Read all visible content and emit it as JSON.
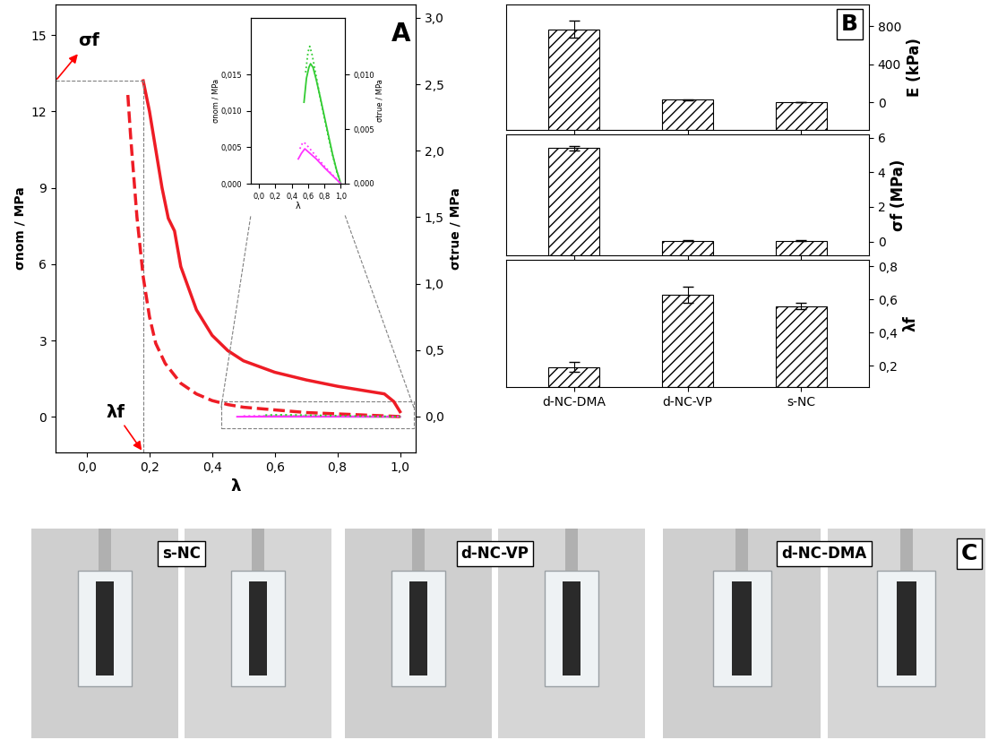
{
  "chart_data": [
    {
      "type": "line",
      "panel_label": "A",
      "x_label": "λ",
      "y_label": "σnom / MPa",
      "y2_label": "σtrue / MPa",
      "xlim": [
        -0.1,
        1.05
      ],
      "xticks": [
        {
          "value": 0.0,
          "label": "0,0"
        },
        {
          "value": 0.2,
          "label": "0,2"
        },
        {
          "value": 0.4,
          "label": "0,4"
        },
        {
          "value": 0.6,
          "label": "0,6"
        },
        {
          "value": 0.8,
          "label": "0,8"
        },
        {
          "value": 1.0,
          "label": "1,0"
        }
      ],
      "ylim": [
        -1.4,
        16.2
      ],
      "yticks": [
        0,
        3,
        6,
        9,
        12,
        15
      ],
      "y2lim": [
        -0.27,
        3.1
      ],
      "y2ticks": [
        {
          "value": 0.0,
          "label": "0,0"
        },
        {
          "value": 0.5,
          "label": "0,5"
        },
        {
          "value": 1.0,
          "label": "1,0"
        },
        {
          "value": 1.5,
          "label": "1,5"
        },
        {
          "value": 2.0,
          "label": "2,0"
        },
        {
          "value": 2.5,
          "label": "2,5"
        },
        {
          "value": 3.0,
          "label": "3,0"
        }
      ],
      "series": [
        {
          "color": "#ee1c25",
          "line_style": "solid",
          "x": [
            1.0,
            0.98,
            0.95,
            0.9,
            0.8,
            0.7,
            0.6,
            0.5,
            0.45,
            0.4,
            0.35,
            0.3,
            0.28,
            0.26,
            0.24,
            0.22,
            0.2,
            0.18
          ],
          "values": [
            0.2,
            0.6,
            0.9,
            1.0,
            1.2,
            1.45,
            1.75,
            2.2,
            2.6,
            3.2,
            4.2,
            5.9,
            7.3,
            7.8,
            9.0,
            10.5,
            12.0,
            13.2
          ]
        },
        {
          "color": "#ee1c25",
          "line_style": "dashed",
          "axis": "y2",
          "x": [
            1.0,
            0.9,
            0.8,
            0.7,
            0.6,
            0.5,
            0.45,
            0.4,
            0.35,
            0.3,
            0.25,
            0.22,
            0.2,
            0.18,
            0.16,
            0.14,
            0.13
          ],
          "values": [
            0.0,
            0.01,
            0.02,
            0.03,
            0.05,
            0.07,
            0.09,
            0.12,
            0.17,
            0.25,
            0.4,
            0.55,
            0.75,
            1.05,
            1.5,
            2.1,
            2.45
          ]
        }
      ],
      "annotations": [
        {
          "text": "σf",
          "y": 13.2
        },
        {
          "text": "λf",
          "x": 0.18
        }
      ],
      "inset": {
        "x_label": "λ",
        "y_label": "σnom / MPa",
        "y2_label": "σtrue / MPa",
        "xlim": [
          -0.1,
          1.05
        ],
        "xticks": [
          {
            "value": 0.0,
            "label": "0,0"
          },
          {
            "value": 0.2,
            "label": "0,2"
          },
          {
            "value": 0.4,
            "label": "0,4"
          },
          {
            "value": 0.6,
            "label": "0,6"
          },
          {
            "value": 0.8,
            "label": "0,8"
          },
          {
            "value": 1.0,
            "label": "1,0"
          }
        ],
        "ylim": [
          0,
          0.0228
        ],
        "yticks": [
          {
            "value": 0.0,
            "label": "0,000"
          },
          {
            "value": 0.005,
            "label": "0,005"
          },
          {
            "value": 0.01,
            "label": "0,010"
          },
          {
            "value": 0.015,
            "label": "0,015"
          }
        ],
        "y2lim": [
          0,
          0.0152
        ],
        "y2ticks": [
          {
            "value": 0.0,
            "label": "0,000"
          },
          {
            "value": 0.005,
            "label": "0,005"
          },
          {
            "value": 0.01,
            "label": "0,010"
          }
        ],
        "series": [
          {
            "color": "#33cc33",
            "line_style": "solid",
            "x": [
              0.55,
              0.58,
              0.61,
              0.63,
              0.66,
              0.7,
              0.75,
              0.8,
              0.85,
              0.9,
              0.95,
              1.0
            ],
            "values": [
              0.0112,
              0.0145,
              0.016,
              0.0165,
              0.016,
              0.0143,
              0.0118,
              0.0092,
              0.0066,
              0.004,
              0.0018,
              0.0
            ]
          },
          {
            "color": "#33cc33",
            "line_style": "dotted",
            "axis": "y2",
            "x": [
              0.57,
              0.6,
              0.62,
              0.65,
              0.7,
              0.75,
              0.8,
              0.85,
              0.9,
              0.95,
              1.0
            ],
            "values": [
              0.0102,
              0.0121,
              0.0126,
              0.0118,
              0.0098,
              0.0078,
              0.006,
              0.0042,
              0.0026,
              0.0011,
              0.0
            ]
          },
          {
            "color": "#ff33ff",
            "line_style": "solid",
            "x": [
              0.48,
              0.52,
              0.56,
              0.6,
              0.7,
              0.8,
              0.9,
              1.0
            ],
            "values": [
              0.0034,
              0.0042,
              0.0048,
              0.0044,
              0.0034,
              0.0022,
              0.0011,
              0.0
            ]
          },
          {
            "color": "#ff33ff",
            "line_style": "dotted",
            "axis": "y2",
            "x": [
              0.5,
              0.53,
              0.55,
              0.6,
              0.7,
              0.8,
              0.9,
              1.0
            ],
            "values": [
              0.0032,
              0.0037,
              0.0038,
              0.0034,
              0.0025,
              0.0016,
              0.0008,
              0.0
            ]
          }
        ]
      }
    },
    {
      "type": "bar",
      "panel_label": "B",
      "categories": [
        "d-NC-DMA",
        "d-NC-VP",
        "s-NC"
      ],
      "values": [
        770,
        30,
        5
      ],
      "errors": [
        90,
        5,
        0
      ],
      "color": "#ffffff",
      "y_label": "E (kPa)",
      "ylim": [
        -290,
        1030
      ],
      "yticks": [
        0,
        400,
        800
      ],
      "tick_labels": "y"
    },
    {
      "type": "bar",
      "categories": [
        "d-NC-DMA",
        "d-NC-VP",
        "s-NC"
      ],
      "values": [
        5.4,
        0.05,
        0.05
      ],
      "errors": [
        0.15,
        0.02,
        0.02
      ],
      "color": "#ffffff",
      "y_label": "σf (MPa)",
      "ylim": [
        -0.8,
        6.2
      ],
      "yticks": [
        0,
        2,
        4,
        6
      ],
      "tick_labels": "y"
    },
    {
      "type": "bar",
      "categories": [
        "d-NC-DMA",
        "d-NC-VP",
        "s-NC"
      ],
      "values": [
        0.19,
        0.63,
        0.56
      ],
      "errors": [
        0.03,
        0.05,
        0.02
      ],
      "color": "#ffffff",
      "y_label": "λf",
      "ylim": [
        0.07,
        0.84
      ],
      "yticks": [
        {
          "value": 0.2,
          "label": "0,2"
        },
        {
          "value": 0.4,
          "label": "0,4"
        },
        {
          "value": 0.6,
          "label": "0,6"
        },
        {
          "value": 0.8,
          "label": "0,8"
        }
      ]
    }
  ],
  "photos": {
    "panel_label": "C",
    "labels": [
      "s-NC",
      "d-NC-VP",
      "d-NC-DMA"
    ]
  }
}
